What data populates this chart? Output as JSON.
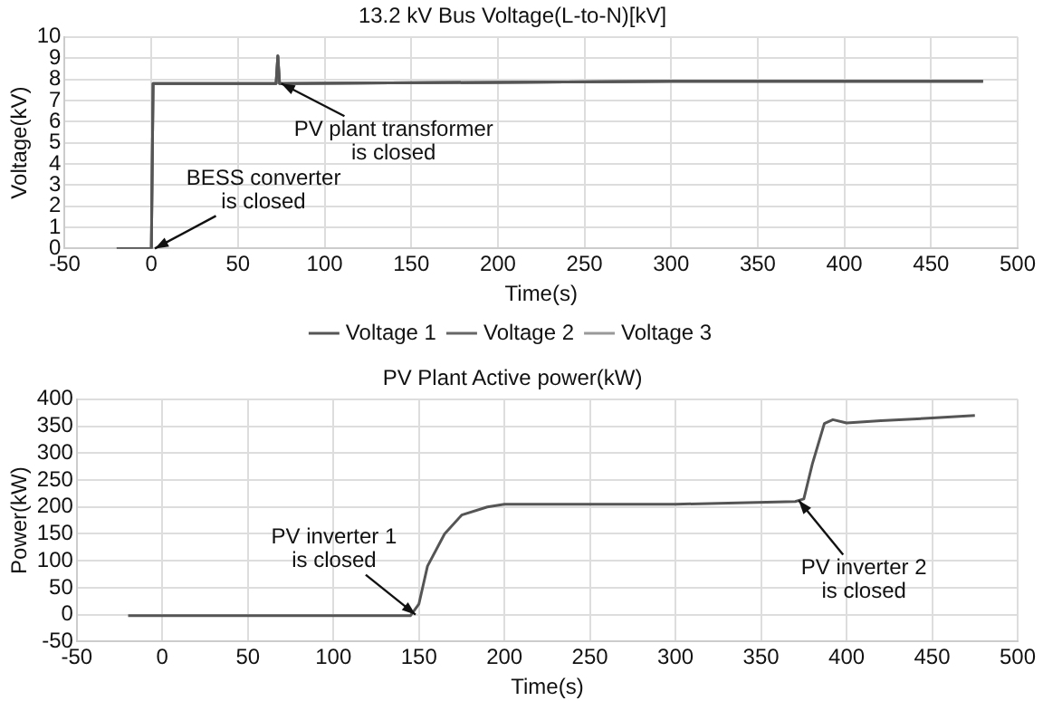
{
  "chart_data": [
    {
      "type": "line",
      "title": "13.2 kV Bus Voltage(L-to-N)[kV]",
      "xlabel": "Time(s)",
      "ylabel": "Voltage(kV)",
      "xlim": [
        -50,
        500
      ],
      "xticks": [
        -50,
        0,
        50,
        100,
        150,
        200,
        250,
        300,
        350,
        400,
        450,
        500
      ],
      "ylim": [
        0,
        10
      ],
      "yticks": [
        0,
        1,
        2,
        3,
        4,
        5,
        6,
        7,
        8,
        9,
        10
      ],
      "grid": true,
      "legend": "bottom",
      "marker": "none",
      "line_style": "solid",
      "series": [
        {
          "name": "Voltage 1",
          "color": "#555555",
          "x": [
            -20,
            0,
            1,
            72,
            73,
            74,
            76,
            300,
            480
          ],
          "values": [
            0,
            0,
            7.8,
            7.8,
            9.1,
            7.8,
            7.8,
            7.9,
            7.9
          ]
        },
        {
          "name": "Voltage 2",
          "color": "#666666",
          "x": [
            -20,
            0,
            1,
            72,
            73,
            74,
            76,
            300,
            480
          ],
          "values": [
            0,
            0,
            7.8,
            7.8,
            9.1,
            7.8,
            7.8,
            7.9,
            7.9
          ]
        },
        {
          "name": "Voltage 3",
          "color": "#999999",
          "x": [
            -20,
            0,
            1,
            72,
            73,
            74,
            76,
            300,
            480
          ],
          "values": [
            0,
            0,
            7.8,
            7.8,
            9.1,
            7.8,
            7.8,
            7.9,
            7.9
          ]
        }
      ],
      "annotations": [
        {
          "text": "BESS converter\nis closed",
          "x": 2,
          "y": 0
        },
        {
          "text": "PV plant transformer\nis closed",
          "x": 75,
          "y": 7.8
        }
      ]
    },
    {
      "type": "line",
      "title": "PV Plant Active power(kW)",
      "xlabel": "Time(s)",
      "ylabel": "Power(kW)",
      "xlim": [
        -50,
        500
      ],
      "xticks": [
        -50,
        0,
        50,
        100,
        150,
        200,
        250,
        300,
        350,
        400,
        450,
        500
      ],
      "ylim": [
        -50,
        400
      ],
      "yticks": [
        -50,
        0,
        50,
        100,
        150,
        200,
        250,
        300,
        350,
        400
      ],
      "grid": true,
      "marker": "none",
      "line_style": "solid",
      "series": [
        {
          "color": "#555555",
          "x": [
            -20,
            70,
            145,
            150,
            155,
            165,
            175,
            190,
            200,
            300,
            370,
            375,
            380,
            387,
            392,
            400,
            420,
            450,
            475
          ],
          "values": [
            -2,
            -2,
            -2,
            20,
            90,
            150,
            185,
            200,
            205,
            205,
            210,
            215,
            280,
            355,
            362,
            356,
            360,
            365,
            370
          ]
        }
      ],
      "annotations": [
        {
          "text": "PV inverter 1\nis closed",
          "x": 148,
          "y": 0
        },
        {
          "text": "PV inverter 2\nis closed",
          "x": 372,
          "y": 212
        }
      ]
    }
  ]
}
